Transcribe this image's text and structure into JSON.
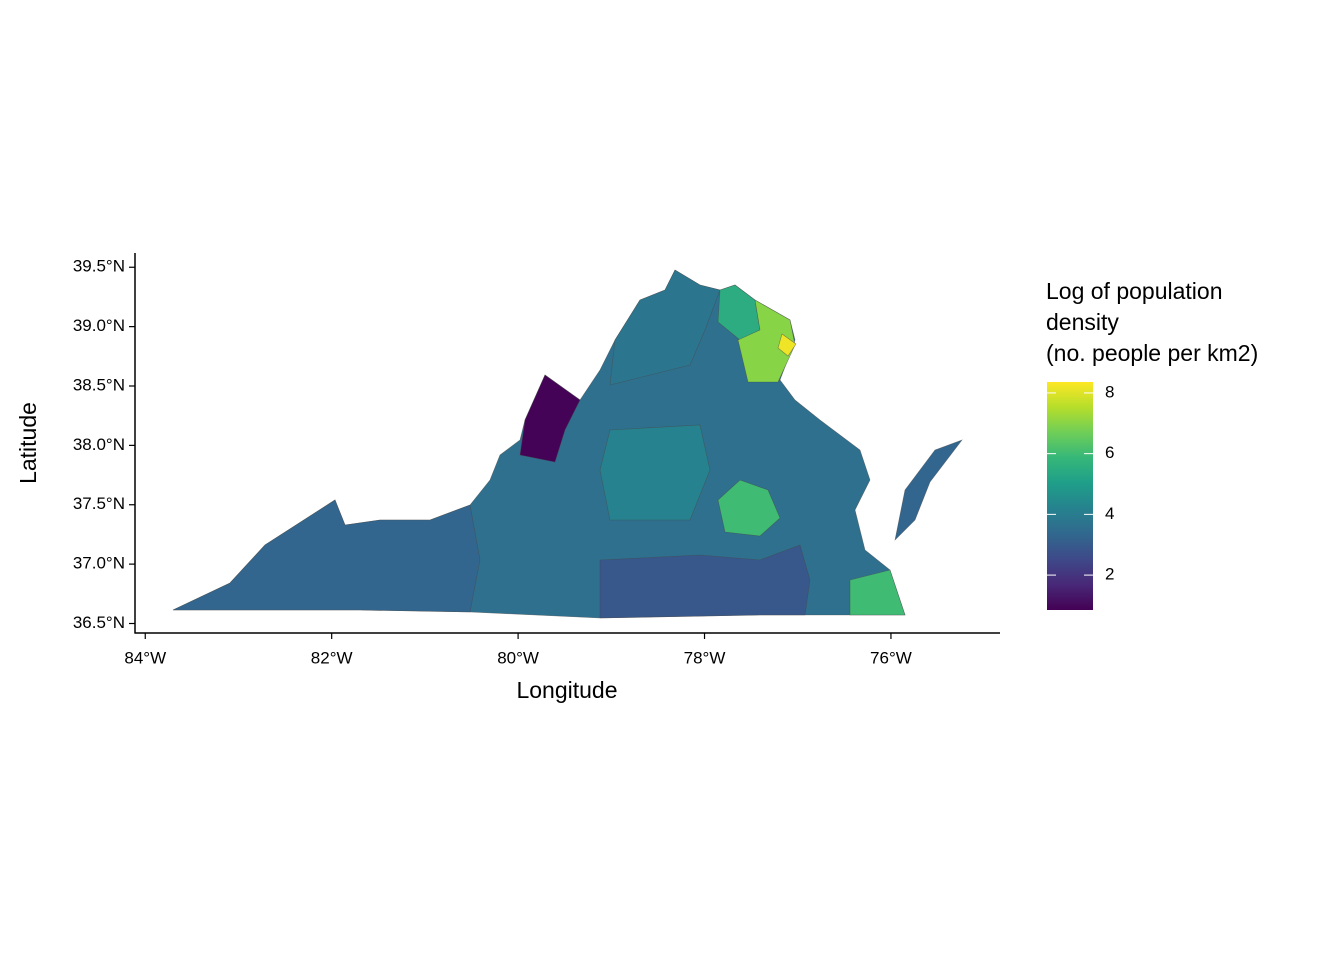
{
  "chart_data": {
    "type": "choropleth",
    "x_label": "Longitude",
    "y_label": "Latitude",
    "xlim": [
      -84.11,
      -74.83
    ],
    "ylim": [
      36.42,
      39.62
    ],
    "xticks": [
      {
        "value": -84,
        "label": "84°W"
      },
      {
        "value": -82,
        "label": "82°W"
      },
      {
        "value": -80,
        "label": "80°W"
      },
      {
        "value": -78,
        "label": "78°W"
      },
      {
        "value": -76,
        "label": "76°W"
      }
    ],
    "yticks": [
      {
        "value": 36.5,
        "label": "36.5°N"
      },
      {
        "value": 37.0,
        "label": "37.0°N"
      },
      {
        "value": 37.5,
        "label": "37.5°N"
      },
      {
        "value": 38.0,
        "label": "38.0°N"
      },
      {
        "value": 38.5,
        "label": "38.5°N"
      },
      {
        "value": 39.0,
        "label": "39.0°N"
      },
      {
        "value": 39.5,
        "label": "39.5°N"
      }
    ],
    "values": [
      3.6,
      3.3,
      2.9,
      3.8,
      0.9,
      5.5,
      7.0,
      8.2,
      6.0,
      6.0,
      3.3,
      4.2
    ],
    "colormap": "viridis",
    "legend_title": [
      "Log of population",
      "density",
      "(no. people per km2)"
    ],
    "colorbar_lim": [
      0.85,
      8.36
    ],
    "colorbar_ticks": [
      2,
      4,
      6,
      8
    ]
  }
}
